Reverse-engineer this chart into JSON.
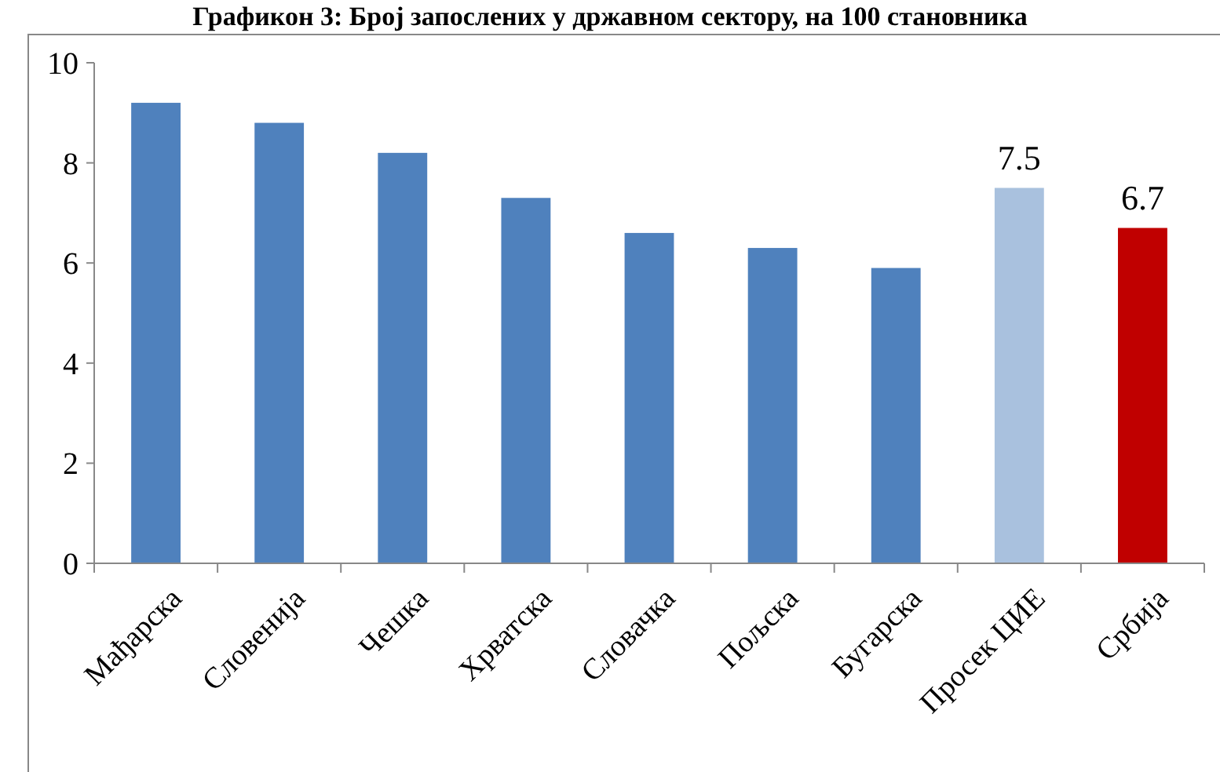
{
  "chart_data": {
    "type": "bar",
    "title": "Графикон 3: Број запослених у државном сектору, на 100 становника",
    "categories": [
      "Мађарска",
      "Словенија",
      "Чешка",
      "Хрватска",
      "Словачка",
      "Пољска",
      "Бугарска",
      "Просек ЦИЕ",
      "Србија"
    ],
    "values": [
      9.2,
      8.8,
      8.2,
      7.3,
      6.6,
      6.3,
      5.9,
      7.5,
      6.7
    ],
    "colors": [
      "#4f81bd",
      "#4f81bd",
      "#4f81bd",
      "#4f81bd",
      "#4f81bd",
      "#4f81bd",
      "#4f81bd",
      "#a9c1de",
      "#c00000"
    ],
    "value_labels": [
      null,
      null,
      null,
      null,
      null,
      null,
      null,
      "7.5",
      "6.7"
    ],
    "ylim": [
      0,
      10
    ],
    "yticks": [
      0,
      2,
      4,
      6,
      8,
      10
    ]
  }
}
